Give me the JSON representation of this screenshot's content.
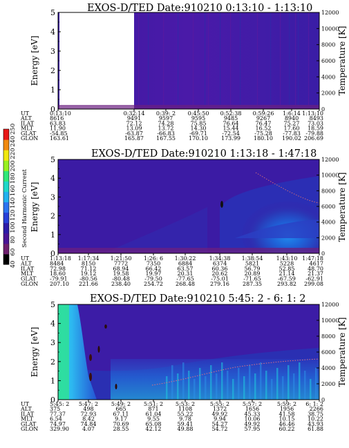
{
  "colorbar": {
    "title": "Second Harmonic Current",
    "ticks": [
      "40",
      "60",
      "80",
      "100",
      "120",
      "140",
      "160",
      "180",
      "200",
      "220",
      "240",
      "250"
    ],
    "colors": [
      "#000000",
      "#6e1f6e",
      "#4a1596",
      "#2d1ca8",
      "#2840d8",
      "#2c74f0",
      "#22b2ee",
      "#1fd8c8",
      "#30e878",
      "#98f020",
      "#f0e810",
      "#f08a10",
      "#e81818"
    ]
  },
  "chart_data": [
    {
      "type": "heatmap",
      "title": "EXOS-D/TED  Date:910210  0:13:10 - 1:13:10",
      "ylabel": "Energy [eV]",
      "y2label": "Temperature [K]",
      "ylim": [
        0,
        5
      ],
      "yticks": [
        "0",
        "1",
        "2",
        "3",
        "4",
        "5"
      ],
      "y2lim": [
        0,
        12000
      ],
      "y2ticks": [
        "0",
        "2000",
        "4000",
        "6000",
        "8000",
        "10000",
        "12000"
      ],
      "data_gap": [
        "0:13:10",
        "0:32:14"
      ],
      "ephemeris": {
        "row_labels": [
          "UT",
          "ALT",
          "ILAT",
          "MLT",
          "GLAT",
          "GLON"
        ],
        "columns": [
          [
            "0:13:10",
            "8616",
            "63.83",
            "11.90",
            "-54.85",
            "163.61"
          ],
          [
            "0:32:14",
            "9491",
            "72.12",
            "13.09",
            "-63.87",
            "165.87"
          ],
          [
            "0:39: 2",
            "9597",
            "74.28",
            "13.72",
            "-66.83",
            "167.55"
          ],
          [
            "0:45:50",
            "9595",
            "75.85",
            "14.30",
            "-69.71",
            "170.10"
          ],
          [
            "0:52:38",
            "9485",
            "76.64",
            "15.44",
            "-72.54",
            "173.99"
          ],
          [
            "0:59:26",
            "9267",
            "76.47",
            "16.52",
            "-75.28",
            "180.10"
          ],
          [
            "1:6:14",
            "8940",
            "75.27",
            "17.60",
            "-77.83",
            "190.02"
          ],
          [
            "1:13:10",
            "8493",
            "73.03",
            "18.59",
            "-79.88",
            "206.69"
          ]
        ]
      }
    },
    {
      "type": "heatmap",
      "title": "EXOS-D/TED  Date:910210  1:13:18 - 1:47:18",
      "ylabel": "Energy [eV]",
      "y2label": "Temperature [K]",
      "ylim": [
        0,
        5
      ],
      "yticks": [
        "0",
        "1",
        "2",
        "3",
        "4",
        "5"
      ],
      "y2lim": [
        0,
        12000
      ],
      "y2ticks": [
        "0",
        "2000",
        "4000",
        "6000",
        "8000",
        "10000",
        "12000"
      ],
      "ephemeris": {
        "row_labels": [
          "UT",
          "ALT",
          "ILAT",
          "MLT",
          "GLAT",
          "GLON"
        ],
        "columns": [
          [
            "1:13:18",
            "8484",
            "72.98",
            "18.60",
            "-79.91",
            "207.10"
          ],
          [
            "1:17:34",
            "8150",
            "71.12",
            "19.12",
            "-80.56",
            "221.66"
          ],
          [
            "1:21:50",
            "7772",
            "68.94",
            "19.58",
            "-80.48",
            "238.40"
          ],
          [
            "1:26: 6",
            "7350",
            "66.42",
            "19.97",
            "-79.50",
            "254.72"
          ],
          [
            "1:30:22",
            "6884",
            "63.57",
            "20.31",
            "-77.65",
            "268.48"
          ],
          [
            "1:34:38",
            "6374",
            "60.36",
            "20.62",
            "-75.01",
            "279.16"
          ],
          [
            "1:38:54",
            "5821",
            "56.79",
            "20.89",
            "-71.65",
            "287.35"
          ],
          [
            "1:43:10",
            "5228",
            "52.85",
            "21.14",
            "-67.59",
            "293.82"
          ],
          [
            "1:47:18",
            "4617",
            "48.70",
            "21.37",
            "-62.91",
            "299.08"
          ]
        ]
      }
    },
    {
      "type": "heatmap",
      "title": "EXOS-D/TED  Date:910210  5:45: 2 - 6: 1: 2",
      "ylabel": "Energy [eV]",
      "y2label": "Temperature [K]",
      "ylim": [
        0,
        5
      ],
      "yticks": [
        "0",
        "1",
        "2",
        "3",
        "4",
        "5"
      ],
      "y2lim": [
        0,
        12000
      ],
      "y2ticks": [
        "0",
        "2000",
        "4000",
        "6000",
        "8000",
        "10000",
        "12000"
      ],
      "ephemeris": {
        "row_labels": [
          "UT",
          "ALT",
          "ILAT",
          "MLT",
          "GLAT",
          "GLON"
        ],
        "columns": [
          [
            "5:45: 2",
            "375",
            "77.37",
            "6.54",
            "74.97",
            "329.90"
          ],
          [
            "5:47: 2",
            "498",
            "72.93",
            "8.42",
            "74.84",
            "4.07"
          ],
          [
            "5:49: 2",
            "665",
            "67.11",
            "9.17",
            "70.69",
            "28.55"
          ],
          [
            "5:51: 2",
            "871",
            "61.04",
            "9.55",
            "65.08",
            "42.12"
          ],
          [
            "5:53: 2",
            "1108",
            "55.22",
            "9.78",
            "59.41",
            "49.88"
          ],
          [
            "5:55: 2",
            "1372",
            "49.92",
            "9.94",
            "54.27",
            "54.72"
          ],
          [
            "5:57: 2",
            "1656",
            "45.33",
            "10.06",
            "49.92",
            "57.95"
          ],
          [
            "5:59: 2",
            "1956",
            "41.58",
            "10.15",
            "46.46",
            "60.22"
          ],
          [
            "6: 1: 2",
            "2266",
            "38.75",
            "10.22",
            "43.93",
            "61.88"
          ]
        ]
      }
    }
  ]
}
